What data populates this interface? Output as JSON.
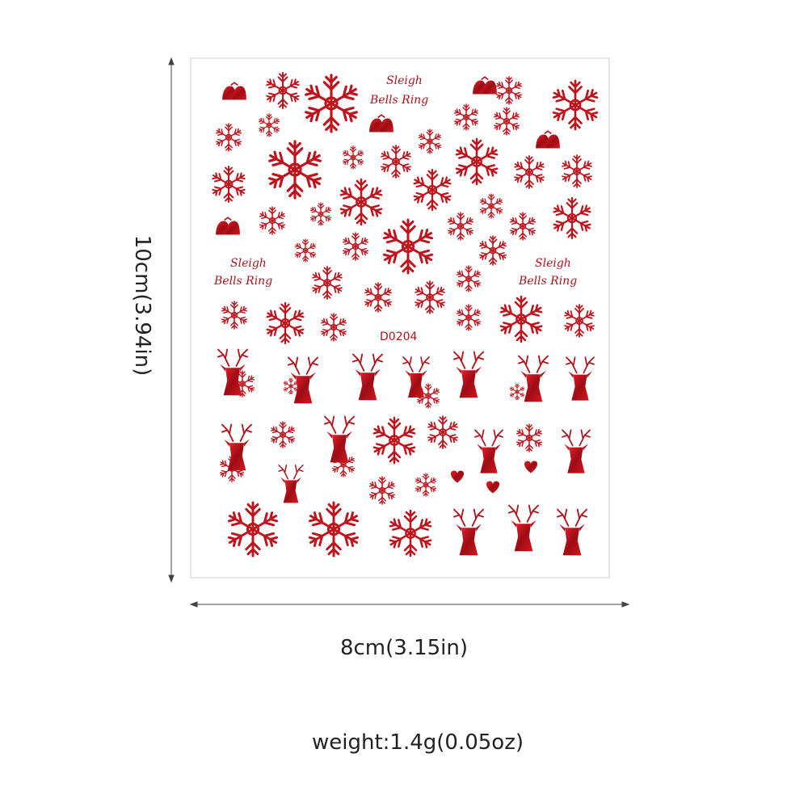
{
  "dimensions": {
    "height": "10cm(3.94in)",
    "width": "8cm(3.15in)"
  },
  "weight": "weight:1.4g(0.05oz)",
  "sheet": {
    "code": "D0204",
    "captions": [
      {
        "line1": "Sleigh",
        "line2": "Bells Ring"
      },
      {
        "line1": "Sleigh",
        "line2": "Bells Ring"
      },
      {
        "line1": "Sleigh",
        "line2": "Bells Ring"
      }
    ]
  }
}
